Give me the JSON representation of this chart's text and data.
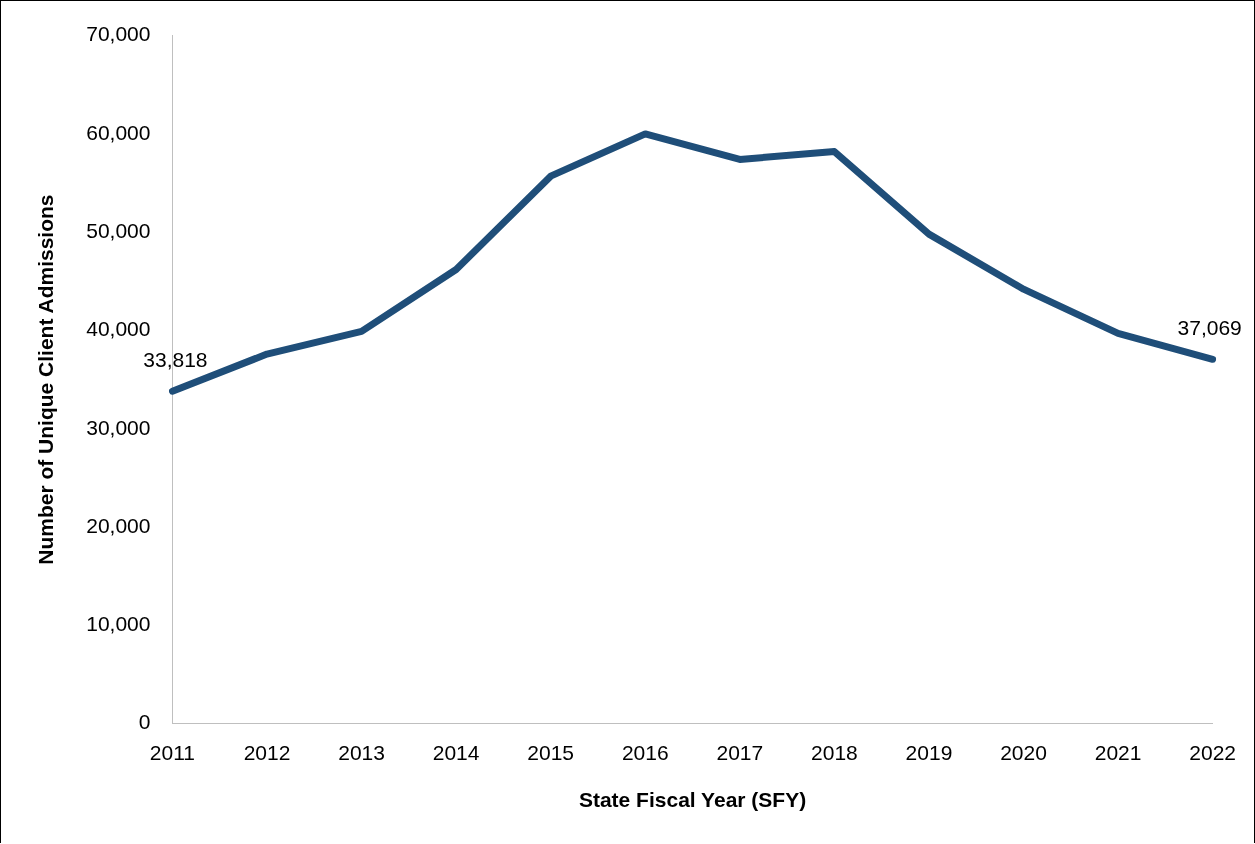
{
  "chart_data": {
    "type": "line",
    "xlabel": "State Fiscal Year (SFY)",
    "ylabel": "Number of Unique Client Admissions",
    "categories": [
      "2011",
      "2012",
      "2013",
      "2014",
      "2015",
      "2016",
      "2017",
      "2018",
      "2019",
      "2020",
      "2021",
      "2022"
    ],
    "values": [
      33818,
      37600,
      39900,
      46200,
      55700,
      60000,
      57400,
      58200,
      49800,
      44200,
      39700,
      37069
    ],
    "value_labels": [
      "33,818",
      null,
      null,
      null,
      null,
      null,
      null,
      null,
      null,
      null,
      null,
      "37,069"
    ],
    "color": "#1f4e79",
    "marker": "none",
    "ylim": [
      0,
      70000
    ],
    "yticks": [
      0,
      {
        "value": 10000,
        "label": "10,000"
      },
      {
        "value": 20000,
        "label": "20,000"
      },
      {
        "value": 30000,
        "label": "30,000"
      },
      {
        "value": 40000,
        "label": "40,000"
      },
      {
        "value": 50000,
        "label": "50,000"
      },
      {
        "value": 60000,
        "label": "60,000"
      },
      {
        "value": 70000,
        "label": "70,000"
      }
    ]
  }
}
